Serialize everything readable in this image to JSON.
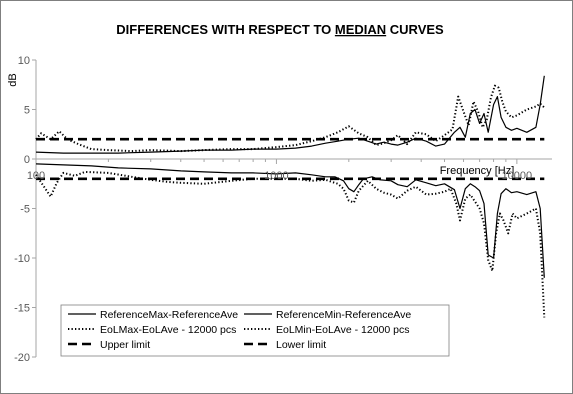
{
  "chart_data": {
    "type": "line",
    "title_parts": [
      "DIFFERENCES WITH  RESPECT TO ",
      "MEDIAN",
      " CURVES"
    ],
    "ylabel": "dB",
    "xlabel": "Frequency [Hz]",
    "xscale": "log",
    "xlim": [
      100,
      14000
    ],
    "ylim": [
      -20,
      10
    ],
    "yticks": [
      10,
      5,
      0,
      -5,
      -10,
      -15,
      -20
    ],
    "xticks": [
      100,
      1000,
      10000
    ],
    "grid": false,
    "legend_placement": "bottom-left",
    "series": [
      {
        "name": "ReferenceMax-ReferenceAve",
        "style": "solid",
        "points": [
          [
            100,
            0.7
          ],
          [
            130,
            0.6
          ],
          [
            170,
            0.6
          ],
          [
            220,
            0.6
          ],
          [
            300,
            0.7
          ],
          [
            400,
            0.8
          ],
          [
            500,
            0.9
          ],
          [
            650,
            0.9
          ],
          [
            800,
            1.0
          ],
          [
            1000,
            1.0
          ],
          [
            1200,
            1.1
          ],
          [
            1400,
            1.3
          ],
          [
            1600,
            1.6
          ],
          [
            1800,
            1.8
          ],
          [
            2000,
            2.0
          ],
          [
            2200,
            2.1
          ],
          [
            2400,
            1.8
          ],
          [
            2600,
            1.5
          ],
          [
            2800,
            1.7
          ],
          [
            3000,
            1.5
          ],
          [
            3200,
            1.4
          ],
          [
            3500,
            1.7
          ],
          [
            3800,
            2.1
          ],
          [
            4200,
            1.8
          ],
          [
            4600,
            1.3
          ],
          [
            5000,
            1.5
          ],
          [
            5500,
            2.7
          ],
          [
            5800,
            3.2
          ],
          [
            6100,
            2.2
          ],
          [
            6400,
            4.6
          ],
          [
            6700,
            5.0
          ],
          [
            7000,
            3.6
          ],
          [
            7300,
            4.6
          ],
          [
            7600,
            2.7
          ],
          [
            8000,
            5.5
          ],
          [
            8300,
            6.3
          ],
          [
            8600,
            4.2
          ],
          [
            9000,
            3.2
          ],
          [
            9500,
            2.9
          ],
          [
            10000,
            3.1
          ],
          [
            11000,
            2.7
          ],
          [
            12000,
            3.2
          ],
          [
            12500,
            5.5
          ],
          [
            13000,
            8.4
          ]
        ]
      },
      {
        "name": "ReferenceMin-ReferenceAve",
        "style": "solid",
        "points": [
          [
            100,
            -0.5
          ],
          [
            130,
            -0.6
          ],
          [
            170,
            -0.7
          ],
          [
            220,
            -0.9
          ],
          [
            300,
            -1.0
          ],
          [
            400,
            -1.2
          ],
          [
            500,
            -1.3
          ],
          [
            650,
            -1.4
          ],
          [
            800,
            -1.4
          ],
          [
            1000,
            -1.5
          ],
          [
            1200,
            -1.4
          ],
          [
            1400,
            -1.6
          ],
          [
            1600,
            -1.8
          ],
          [
            1750,
            -1.8
          ],
          [
            1900,
            -2.2
          ],
          [
            2000,
            -3.0
          ],
          [
            2100,
            -3.3
          ],
          [
            2200,
            -2.6
          ],
          [
            2300,
            -2.0
          ],
          [
            2500,
            -1.8
          ],
          [
            2700,
            -2.1
          ],
          [
            3000,
            -2.2
          ],
          [
            3200,
            -2.6
          ],
          [
            3500,
            -2.8
          ],
          [
            3800,
            -2.1
          ],
          [
            4200,
            -2.4
          ],
          [
            4600,
            -2.7
          ],
          [
            5000,
            -2.5
          ],
          [
            5500,
            -3.1
          ],
          [
            5800,
            -5.0
          ],
          [
            6100,
            -3.0
          ],
          [
            6400,
            -2.5
          ],
          [
            6700,
            -2.8
          ],
          [
            7000,
            -3.2
          ],
          [
            7300,
            -4.5
          ],
          [
            7600,
            -9.7
          ],
          [
            8000,
            -10.0
          ],
          [
            8300,
            -5.5
          ],
          [
            8600,
            -3.5
          ],
          [
            9000,
            -3.0
          ],
          [
            9500,
            -3.4
          ],
          [
            10000,
            -3.3
          ],
          [
            11000,
            -3.6
          ],
          [
            12000,
            -3.3
          ],
          [
            12500,
            -5.0
          ],
          [
            13000,
            -12.0
          ]
        ]
      },
      {
        "name": "EoLMax-EoLAve - 12000 pcs",
        "style": "dotted",
        "points": [
          [
            100,
            2.0
          ],
          [
            105,
            2.6
          ],
          [
            115,
            2.0
          ],
          [
            125,
            2.8
          ],
          [
            135,
            2.0
          ],
          [
            150,
            1.5
          ],
          [
            170,
            1.0
          ],
          [
            200,
            0.9
          ],
          [
            250,
            0.8
          ],
          [
            300,
            0.9
          ],
          [
            400,
            0.8
          ],
          [
            500,
            0.9
          ],
          [
            650,
            1.0
          ],
          [
            800,
            1.0
          ],
          [
            1000,
            1.2
          ],
          [
            1200,
            1.4
          ],
          [
            1400,
            1.8
          ],
          [
            1600,
            2.2
          ],
          [
            1800,
            2.7
          ],
          [
            2000,
            3.3
          ],
          [
            2200,
            2.6
          ],
          [
            2400,
            2.2
          ],
          [
            2600,
            1.4
          ],
          [
            2800,
            1.6
          ],
          [
            3000,
            1.9
          ],
          [
            3200,
            2.4
          ],
          [
            3500,
            1.5
          ],
          [
            3800,
            2.7
          ],
          [
            4200,
            2.5
          ],
          [
            4600,
            1.8
          ],
          [
            5000,
            2.4
          ],
          [
            5400,
            3.0
          ],
          [
            5700,
            6.3
          ],
          [
            6000,
            4.8
          ],
          [
            6300,
            3.4
          ],
          [
            6600,
            5.8
          ],
          [
            6900,
            4.8
          ],
          [
            7200,
            3.2
          ],
          [
            7500,
            4.0
          ],
          [
            7800,
            6.2
          ],
          [
            8100,
            7.4
          ],
          [
            8400,
            7.2
          ],
          [
            8700,
            5.8
          ],
          [
            9000,
            4.8
          ],
          [
            9500,
            4.2
          ],
          [
            10000,
            4.4
          ],
          [
            11000,
            5.0
          ],
          [
            12000,
            5.3
          ],
          [
            12500,
            5.6
          ],
          [
            13000,
            5.2
          ]
        ]
      },
      {
        "name": "EoLMin-EoLAve - 12000 pcs",
        "style": "dotted",
        "points": [
          [
            100,
            -1.6
          ],
          [
            108,
            -2.8
          ],
          [
            115,
            -3.8
          ],
          [
            122,
            -2.4
          ],
          [
            130,
            -1.4
          ],
          [
            145,
            -1.7
          ],
          [
            160,
            -1.3
          ],
          [
            200,
            -1.4
          ],
          [
            250,
            -1.8
          ],
          [
            300,
            -2.1
          ],
          [
            350,
            -2.3
          ],
          [
            400,
            -2.4
          ],
          [
            500,
            -2.5
          ],
          [
            650,
            -2.2
          ],
          [
            800,
            -2.0
          ],
          [
            1000,
            -2.0
          ],
          [
            1200,
            -2.0
          ],
          [
            1400,
            -2.2
          ],
          [
            1600,
            -2.1
          ],
          [
            1800,
            -2.5
          ],
          [
            1900,
            -3.0
          ],
          [
            2000,
            -4.2
          ],
          [
            2100,
            -4.4
          ],
          [
            2200,
            -3.2
          ],
          [
            2400,
            -2.2
          ],
          [
            2600,
            -3.0
          ],
          [
            2800,
            -3.4
          ],
          [
            3000,
            -3.6
          ],
          [
            3200,
            -4.0
          ],
          [
            3500,
            -3.2
          ],
          [
            3800,
            -2.8
          ],
          [
            4200,
            -3.6
          ],
          [
            4600,
            -3.5
          ],
          [
            5000,
            -3.3
          ],
          [
            5300,
            -3.0
          ],
          [
            5600,
            -4.5
          ],
          [
            5800,
            -6.2
          ],
          [
            6100,
            -4.0
          ],
          [
            6400,
            -3.6
          ],
          [
            6700,
            -4.3
          ],
          [
            7000,
            -5.0
          ],
          [
            7300,
            -6.5
          ],
          [
            7600,
            -10.2
          ],
          [
            7900,
            -11.3
          ],
          [
            8200,
            -7.5
          ],
          [
            8500,
            -5.5
          ],
          [
            8800,
            -6.2
          ],
          [
            9200,
            -7.5
          ],
          [
            9600,
            -5.5
          ],
          [
            10000,
            -6.0
          ],
          [
            11000,
            -5.5
          ],
          [
            12000,
            -5.0
          ],
          [
            12500,
            -7.5
          ],
          [
            13000,
            -16.0
          ]
        ]
      },
      {
        "name": "Upper limit",
        "style": "dashed",
        "points": [
          [
            100,
            2.0
          ],
          [
            13000,
            2.0
          ]
        ]
      },
      {
        "name": "Lower limit",
        "style": "dashed",
        "points": [
          [
            100,
            -2.0
          ],
          [
            13000,
            -2.0
          ]
        ]
      }
    ]
  }
}
